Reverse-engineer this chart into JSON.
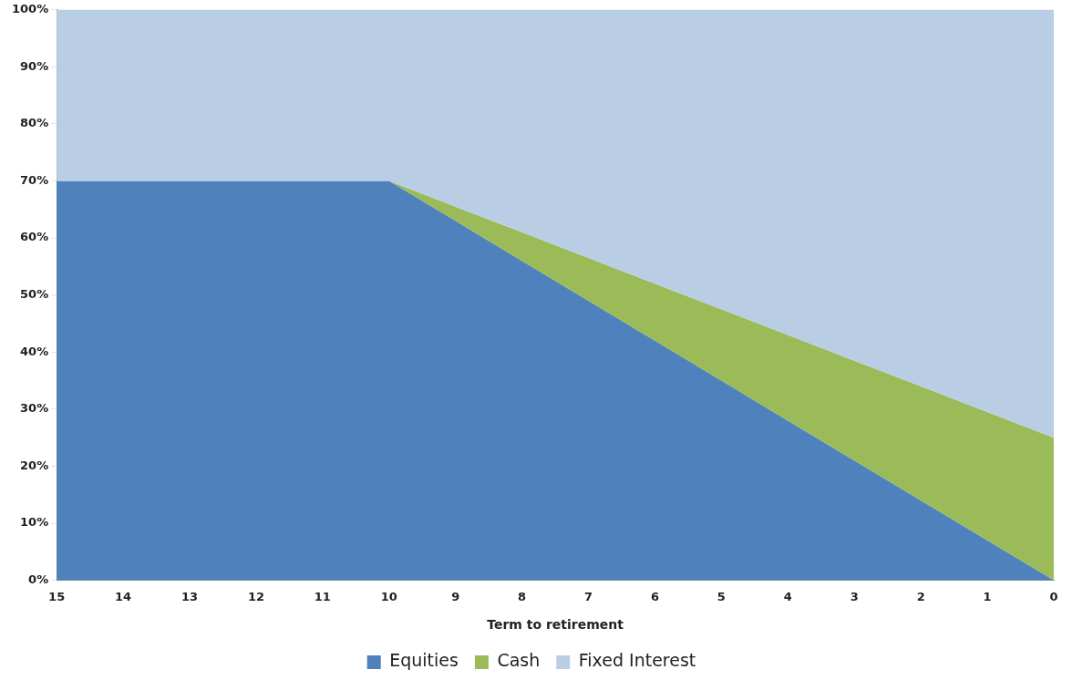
{
  "chart_data": {
    "type": "area",
    "stacked": true,
    "xlabel": "Term to retirement",
    "categories": [
      "15",
      "14",
      "13",
      "12",
      "11",
      "10",
      "9",
      "8",
      "7",
      "6",
      "5",
      "4",
      "3",
      "2",
      "1",
      "0"
    ],
    "series": [
      {
        "name": "Equities",
        "color": "#4f81bd",
        "values": [
          70,
          70,
          70,
          70,
          70,
          70,
          63,
          56,
          49,
          42,
          35,
          28,
          21,
          14,
          7,
          0
        ]
      },
      {
        "name": "Cash",
        "color": "#9bbb59",
        "values": [
          null,
          null,
          null,
          null,
          null,
          0,
          2.5,
          5,
          7.5,
          10,
          12.5,
          15,
          17.5,
          20,
          22.5,
          25
        ]
      },
      {
        "name": "Fixed Interest",
        "color": "#b9cde5",
        "values": [
          30,
          30,
          30,
          30,
          30,
          30,
          34.5,
          39,
          43.5,
          48,
          52.5,
          57,
          61.5,
          66,
          70.5,
          75
        ]
      }
    ],
    "ylim": [
      0,
      100
    ],
    "yticks": [
      {
        "value": 0,
        "label": "0%"
      },
      {
        "value": 10,
        "label": "10%"
      },
      {
        "value": 20,
        "label": "20%"
      },
      {
        "value": 30,
        "label": "30%"
      },
      {
        "value": 40,
        "label": "40%"
      },
      {
        "value": 50,
        "label": "50%"
      },
      {
        "value": 60,
        "label": "60%"
      },
      {
        "value": 70,
        "label": "70%"
      },
      {
        "value": 80,
        "label": "80%"
      },
      {
        "value": 90,
        "label": "90%"
      },
      {
        "value": 100,
        "label": "100%"
      }
    ],
    "grid": false,
    "legend": "bottom"
  }
}
